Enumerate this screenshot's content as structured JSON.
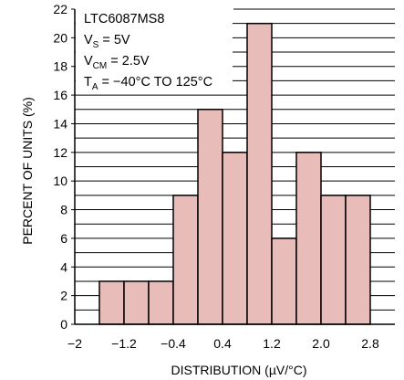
{
  "chart_data": {
    "type": "bar",
    "bar_color": "#e8bcb9",
    "bar_edge_color": "#000000",
    "grid": true,
    "xlabel": "DISTRIBUTION (µV/°C)",
    "ylabel": "PERCENT OF UNITS (%)",
    "xlim": [
      -2.0,
      3.2
    ],
    "ylim": [
      0,
      22
    ],
    "x_ticks": [
      "−2",
      "−1.2",
      "−0.4",
      "0.4",
      "1.2",
      "2.0",
      "2.8"
    ],
    "x_tick_values": [
      -2.0,
      -1.2,
      -0.4,
      0.4,
      1.2,
      2.0,
      2.8
    ],
    "y_ticks": [
      "0",
      "2",
      "4",
      "6",
      "8",
      "10",
      "12",
      "14",
      "16",
      "18",
      "20",
      "22"
    ],
    "y_tick_values": [
      0,
      2,
      4,
      6,
      8,
      10,
      12,
      14,
      16,
      18,
      20,
      22
    ],
    "bin_width": 0.4,
    "bins": [
      {
        "x0": -1.6,
        "value": 3
      },
      {
        "x0": -1.2,
        "value": 3
      },
      {
        "x0": -0.8,
        "value": 3
      },
      {
        "x0": -0.4,
        "value": 9
      },
      {
        "x0": 0.0,
        "value": 15
      },
      {
        "x0": 0.4,
        "value": 12
      },
      {
        "x0": 0.8,
        "value": 21
      },
      {
        "x0": 1.2,
        "value": 6
      },
      {
        "x0": 1.6,
        "value": 12
      },
      {
        "x0": 2.0,
        "value": 9
      },
      {
        "x0": 2.4,
        "value": 9
      }
    ],
    "annotation": {
      "line1": "LTC6087MS8",
      "line2_main": "V",
      "line2_sub": "S",
      "line2_rest": " = 5V",
      "line3_main": "V",
      "line3_sub": "CM",
      "line3_rest": " = 2.5V",
      "line4_main": "T",
      "line4_sub": "A",
      "line4_rest": " = −40°C TO 125°C"
    }
  }
}
